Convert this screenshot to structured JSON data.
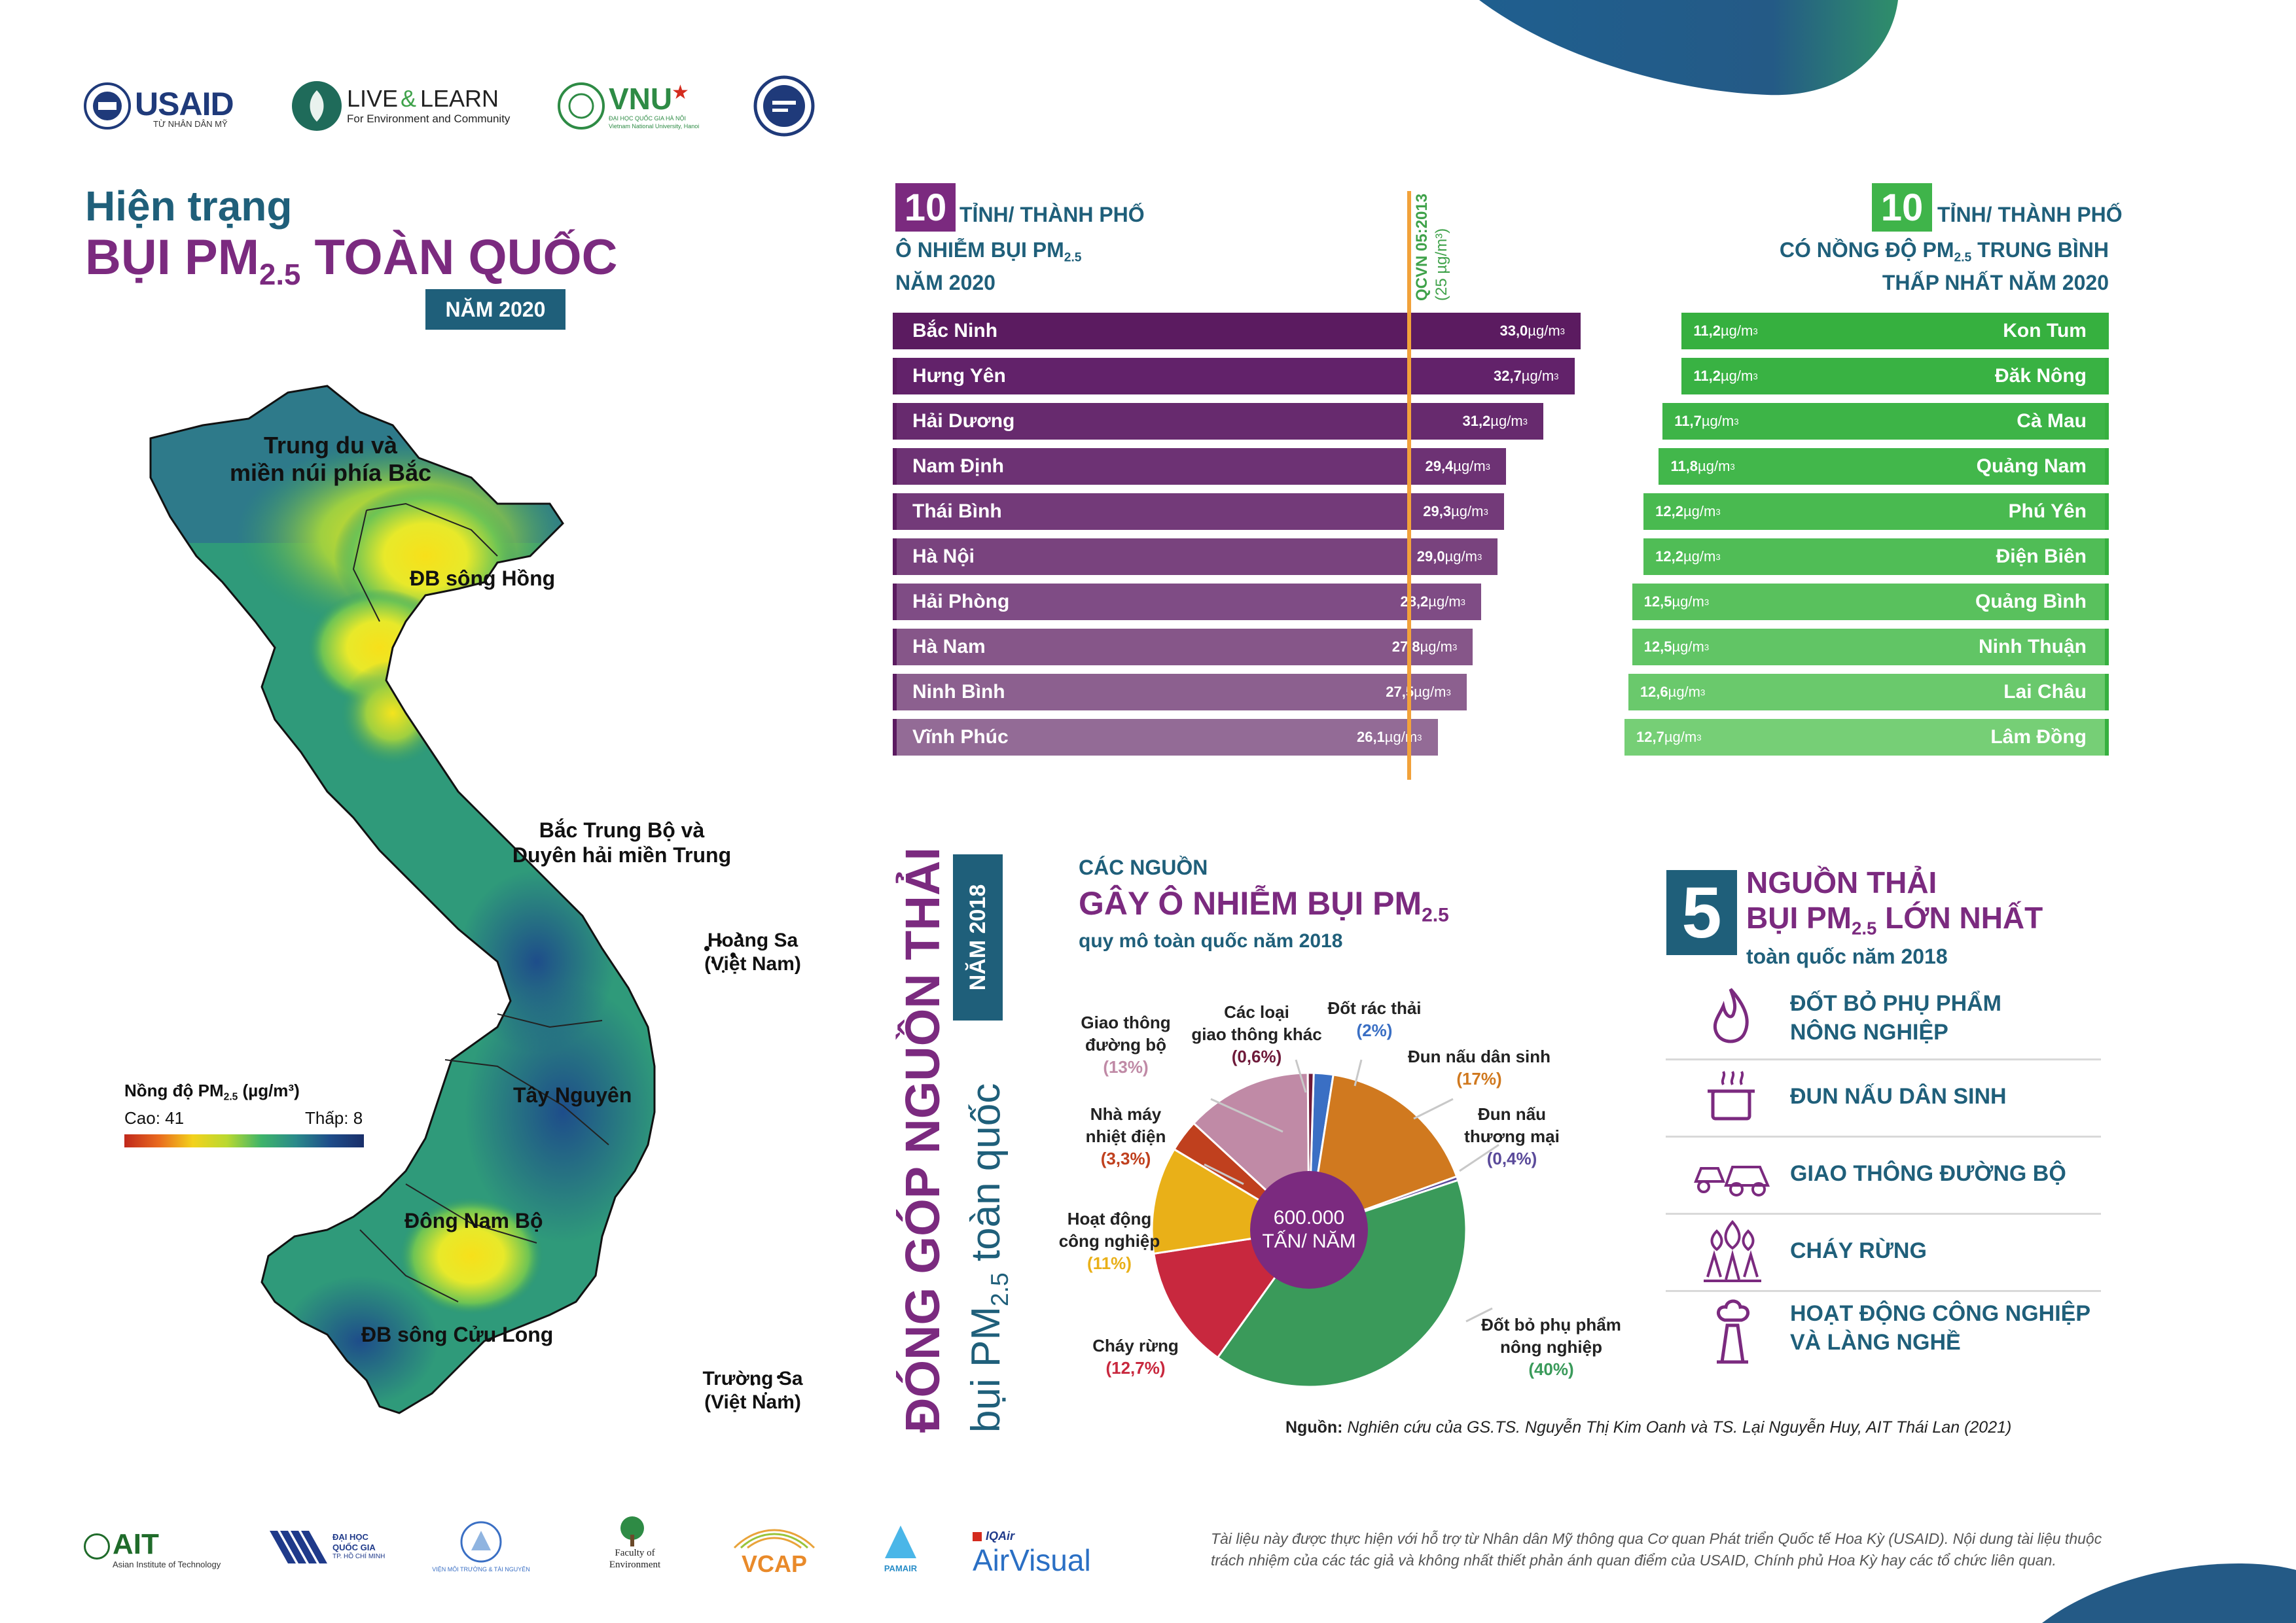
{
  "logos_top": {
    "usaid": "USAID",
    "usaid_sub": "TỪ NHÂN DÂN MỸ",
    "ll_main": "LIVE",
    "ll_amp": "&",
    "ll_learn": "LEARN",
    "ll_sub": "For Environment and Community",
    "vnu": "VNU",
    "vnu_sub": "ĐẠI HỌC QUỐC GIA HÀ NỘI",
    "vnu_sub2": "Vietnam National University, Hanoi"
  },
  "header": {
    "line1": "Hiện trạng",
    "line2_a": "BỤI PM",
    "line2_sub": "2.5",
    "line2_b": " TOÀN QUỐC",
    "year_badge": "NĂM 2020"
  },
  "map": {
    "regions": [
      "Trung du và",
      "miền núi phía Bắc",
      "ĐB sông Hồng",
      "Bắc Trung Bộ và",
      "Duyên hải miền Trung",
      "Tây Nguyên",
      "Đông Nam Bộ",
      "ĐB sông Cửu Long"
    ],
    "islands": [
      "Hoàng Sa",
      "(Việt Nam)",
      "Trường Sa",
      "(Việt Nam)"
    ],
    "legend_title_a": "Nồng độ PM",
    "legend_title_sub": "2.5",
    "legend_title_b": " (µg/m³)",
    "legend_high": "Cao: 41",
    "legend_low": "Thấp: 8"
  },
  "colors": {
    "purple": "#7b2a7f",
    "teal": "#1f5f7a",
    "green": "#3fb44a",
    "orange": "#f2a23a"
  },
  "chart_data": [
    {
      "type": "bar",
      "title_num": "10",
      "title_l1": "TỈNH/ THÀNH PHỐ",
      "title_l2_a": "Ô NHIỄM BỤI PM",
      "title_l2_sub": "2.5",
      "title_l3": "NĂM 2020",
      "threshold_label": "QCVN 05:2013",
      "threshold_unit": "(25 µg/m³)",
      "threshold": 25,
      "unit": "µg/m",
      "unit_sup": "3",
      "categories": [
        "Bắc Ninh",
        "Hưng Yên",
        "Hải Dương",
        "Nam Định",
        "Thái Bình",
        "Hà Nội",
        "Hải Phòng",
        "Hà Nam",
        "Ninh Bình",
        "Vĩnh Phúc"
      ],
      "values": [
        33.0,
        32.7,
        31.2,
        29.4,
        29.3,
        29.0,
        28.2,
        27.8,
        27.5,
        26.1
      ],
      "value_labels": [
        "33,0",
        "32,7",
        "31,2",
        "29,4",
        "29,3",
        "29,0",
        "28,2",
        "27,8",
        "27,5",
        "26,1"
      ],
      "colors": [
        "#5b1b60",
        "#62226a",
        "#672a6e",
        "#6d3274",
        "#733a79",
        "#79437e",
        "#7f4c85",
        "#865689",
        "#8c608f",
        "#936b96"
      ]
    },
    {
      "type": "bar",
      "title_num": "10",
      "title_l1": "TỈNH/ THÀNH PHỐ",
      "title_l2_a": "CÓ NỒNG ĐỘ PM",
      "title_l2_sub": "2.5",
      "title_l2_b": " TRUNG BÌNH",
      "title_l3": "THẤP NHẤT NĂM 2020",
      "unit": "µg/m",
      "unit_sup": "3",
      "categories": [
        "Kon Tum",
        "Đăk Nông",
        "Cà Mau",
        "Quảng Nam",
        "Phú Yên",
        "Điện Biên",
        "Quảng Bình",
        "Ninh Thuận",
        "Lai Châu",
        "Lâm Đồng"
      ],
      "values": [
        11.2,
        11.2,
        11.7,
        11.8,
        12.2,
        12.2,
        12.5,
        12.5,
        12.6,
        12.7
      ],
      "value_labels": [
        "11,2",
        "11,2",
        "11,7",
        "11,8",
        "12,2",
        "12,2",
        "12,5",
        "12,5",
        "12,6",
        "12,7"
      ],
      "colors": [
        "#36b03f",
        "#39b243",
        "#3db447",
        "#42b74b",
        "#49ba50",
        "#50bd56",
        "#59c15d",
        "#61c565",
        "#6ac96c",
        "#76cf76"
      ]
    },
    {
      "type": "pie",
      "title_small": "CÁC NGUỒN",
      "title_big_a": "GÂY Ô NHIỄM BỤI PM",
      "title_big_sub": "2.5",
      "subtitle": "quy mô toàn quốc năm 2018",
      "center_l1": "600.000",
      "center_l2": "TẤN/ NĂM",
      "slices": [
        {
          "label_l1": "Đốt rác thải",
          "label_l2": "",
          "pct_label": "(2%)",
          "value": 2,
          "color": "#3a6fc4"
        },
        {
          "label_l1": "Đun nấu dân sinh",
          "label_l2": "",
          "pct_label": "(17%)",
          "value": 17,
          "color": "#d0791f"
        },
        {
          "label_l1": "Đun nấu",
          "label_l2": "thương mại",
          "pct_label": "(0,4%)",
          "value": 0.4,
          "color": "#5a4a9a"
        },
        {
          "label_l1": "Đốt bỏ phụ phẩm",
          "label_l2": "nông nghiệp",
          "pct_label": "(40%)",
          "value": 40,
          "color": "#3a9a5a"
        },
        {
          "label_l1": "Cháy rừng",
          "label_l2": "",
          "pct_label": "(12,7%)",
          "value": 12.7,
          "color": "#c8283e"
        },
        {
          "label_l1": "Hoạt động",
          "label_l2": "công nghiệp",
          "pct_label": "(11%)",
          "value": 11,
          "color": "#e9b018"
        },
        {
          "label_l1": "Nhà máy",
          "label_l2": "nhiệt điện",
          "pct_label": "(3,3%)",
          "value": 3.3,
          "color": "#c0401e"
        },
        {
          "label_l1": "Giao thông",
          "label_l2": "đường bộ",
          "pct_label": "(13%)",
          "value": 13,
          "color": "#c08aa6"
        },
        {
          "label_l1": "Các loại",
          "label_l2": "giao thông khác",
          "pct_label": "(0,6%)",
          "value": 0.6,
          "color": "#6e1a3a"
        }
      ]
    }
  ],
  "contribution": {
    "vertical_big": "ĐÓNG GÓP NGUỒN THẢI",
    "vertical_small_a": "bụi PM",
    "vertical_small_sub": "2.5",
    "vertical_small_b": " toàn quốc",
    "year_badge": "NĂM 2018"
  },
  "top5": {
    "number": "5",
    "title_l1": "NGUỒN THẢI",
    "title_l2_a": "BỤI PM",
    "title_l2_sub": "2.5",
    "title_l2_b": " LỚN NHẤT",
    "subtitle": "toàn quốc năm 2018",
    "items": [
      {
        "l1": "ĐỐT BỎ PHỤ PHẨM",
        "l2": "NÔNG NGHIỆP",
        "icon": "flame-icon"
      },
      {
        "l1": "ĐUN NẤU DÂN SINH",
        "l2": "",
        "icon": "cooking-pot-icon"
      },
      {
        "l1": "GIAO THÔNG ĐƯỜNG BỘ",
        "l2": "",
        "icon": "vehicles-icon"
      },
      {
        "l1": "CHÁY RỪNG",
        "l2": "",
        "icon": "forest-fire-icon"
      },
      {
        "l1": "HOẠT ĐỘNG CÔNG NGHIỆP",
        "l2": "VÀ LÀNG NGHỀ",
        "icon": "factory-icon"
      }
    ]
  },
  "source": {
    "label": "Nguồn:",
    "text": " Nghiên cứu của GS.TS. Nguyễn Thị Kim Oanh và TS. Lại Nguyễn Huy, AIT Thái Lan (2021)"
  },
  "logos_bottom": {
    "ait": "AIT",
    "ait_sub": "Asian Institute of Technology",
    "dhqg_l1": "ĐẠI HỌC",
    "dhqg_l2": "QUỐC GIA",
    "dhqg_l3": "TP. HỒ CHÍ MINH",
    "vmt": "VIỆN MÔI TRƯỜNG & TÀI NGUYÊN",
    "foe_l1": "Faculty of",
    "foe_l2": "Environment",
    "vcap": "VCAP",
    "pamair": "PAMAIR",
    "iqair": "IQAir",
    "airvisual": "AirVisual"
  },
  "disclaimer": {
    "l1": "Tài liệu này được thực hiện với hỗ trợ từ Nhân dân Mỹ thông qua Cơ quan Phát triển Quốc tế Hoa Kỳ (USAID). Nội dung tài liệu thuộc",
    "l2": "trách nhiệm của các tác giả và không nhất thiết phản ánh quan điểm của USAID, Chính phủ Hoa Kỳ hay các tổ chức liên quan."
  }
}
